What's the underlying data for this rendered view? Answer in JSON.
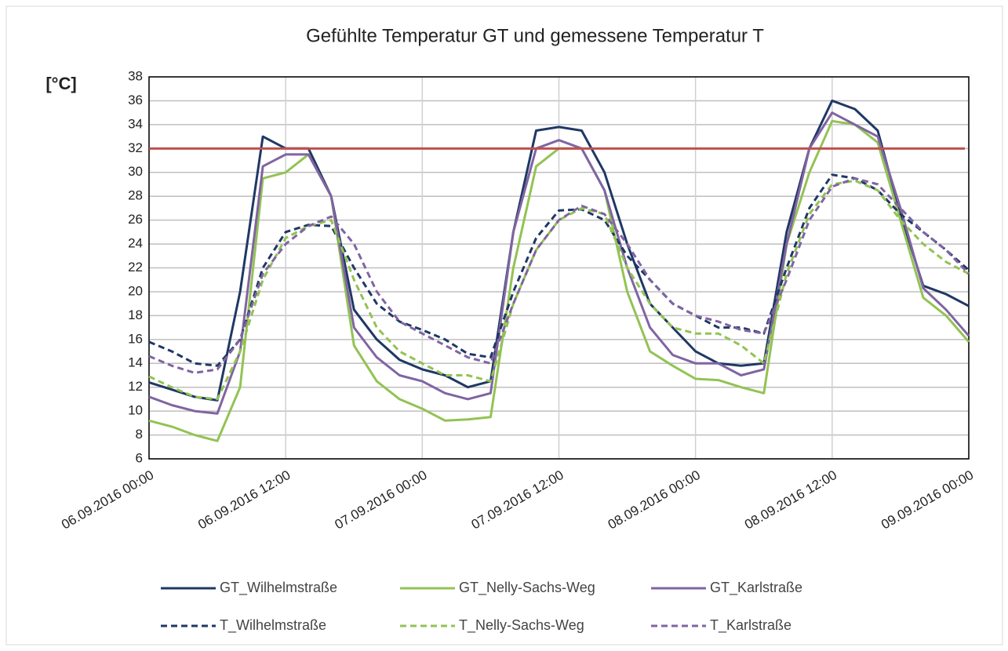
{
  "chart_data": {
    "type": "line",
    "title": "Gefühlte Temperatur GT  und gemessene Temperatur T",
    "y_label": "[°C]",
    "x": [
      "06.09.2016 00:00",
      "06.09.2016 02:00",
      "06.09.2016 04:00",
      "06.09.2016 06:00",
      "06.09.2016 08:00",
      "06.09.2016 10:00",
      "06.09.2016 12:00",
      "06.09.2016 14:00",
      "06.09.2016 16:00",
      "06.09.2016 18:00",
      "06.09.2016 20:00",
      "06.09.2016 22:00",
      "07.09.2016 00:00",
      "07.09.2016 02:00",
      "07.09.2016 04:00",
      "07.09.2016 06:00",
      "07.09.2016 08:00",
      "07.09.2016 10:00",
      "07.09.2016 12:00",
      "07.09.2016 14:00",
      "07.09.2016 16:00",
      "07.09.2016 18:00",
      "07.09.2016 20:00",
      "07.09.2016 22:00",
      "08.09.2016 00:00",
      "08.09.2016 02:00",
      "08.09.2016 04:00",
      "08.09.2016 06:00",
      "08.09.2016 08:00",
      "08.09.2016 10:00",
      "08.09.2016 12:00",
      "08.09.2016 14:00",
      "08.09.2016 16:00",
      "08.09.2016 18:00",
      "08.09.2016 20:00",
      "08.09.2016 22:00",
      "09.09.2016 00:00"
    ],
    "series": [
      {
        "name": "GT_Wilhelmstraße",
        "color": "#1f3864",
        "dash": false,
        "values": [
          12.4,
          11.8,
          11.2,
          10.9,
          20,
          33,
          32,
          32,
          28,
          18.5,
          16,
          14.3,
          13.5,
          13,
          12,
          12.5,
          25,
          33.5,
          33.8,
          33.5,
          30,
          24,
          19,
          17,
          15,
          14,
          13.8,
          14,
          25,
          32,
          36,
          35.3,
          33.5,
          26.5,
          20.5,
          19.8,
          18.8
        ]
      },
      {
        "name": "GT_Nelly-Sachs-Weg",
        "color": "#92c353",
        "dash": false,
        "values": [
          9.2,
          8.7,
          8,
          7.5,
          12,
          29.5,
          30,
          31.5,
          28,
          15.5,
          12.5,
          11,
          10.2,
          9.2,
          9.3,
          9.5,
          22,
          30.5,
          32,
          32,
          28.5,
          20,
          15,
          13.8,
          12.7,
          12.6,
          12,
          11.5,
          24,
          30,
          34.3,
          34,
          32.5,
          26,
          19.5,
          18,
          15.8
        ]
      },
      {
        "name": "GT_Karlstraße",
        "color": "#8064a2",
        "dash": false,
        "values": [
          11.2,
          10.5,
          10,
          9.8,
          15,
          30.5,
          31.5,
          31.5,
          28,
          17,
          14.5,
          13,
          12.5,
          11.5,
          11,
          11.5,
          25,
          32,
          32.7,
          32,
          28.5,
          22,
          17,
          14.7,
          14,
          14,
          13,
          13.5,
          24,
          32,
          35,
          34,
          33,
          27,
          20.3,
          18.5,
          16.3
        ]
      },
      {
        "name": "T_Wilhelmstraße",
        "color": "#1f3864",
        "dash": true,
        "values": [
          15.8,
          15,
          14,
          13.8,
          16,
          22,
          25,
          25.6,
          25.5,
          22,
          19,
          17.5,
          16.8,
          16,
          14.8,
          14.5,
          20,
          24.5,
          26.8,
          26.9,
          26,
          23,
          21,
          19,
          18,
          17,
          17,
          16.5,
          22,
          27,
          29.8,
          29.5,
          28.5,
          26.5,
          25,
          23.5,
          21.8
        ]
      },
      {
        "name": "T_Nelly-Sachs-Weg",
        "color": "#92c353",
        "dash": true,
        "values": [
          12.9,
          12,
          11.2,
          11,
          15,
          21,
          24.5,
          25.5,
          26,
          21,
          17,
          15,
          14,
          13,
          13,
          12.5,
          19,
          23.5,
          26,
          27,
          26.5,
          22,
          19,
          17,
          16.5,
          16.5,
          15.5,
          14,
          21.5,
          26.5,
          29,
          29.3,
          28.5,
          26,
          24,
          22.5,
          21.5
        ]
      },
      {
        "name": "T_Karlstraße",
        "color": "#8064a2",
        "dash": true,
        "values": [
          14.6,
          13.8,
          13.2,
          13.5,
          16,
          21.5,
          24,
          25.5,
          26.3,
          24,
          20,
          17.5,
          16.5,
          15.5,
          14.5,
          14,
          19,
          23.5,
          26,
          27.2,
          26.5,
          24,
          21,
          19,
          18,
          17.5,
          16.8,
          16.5,
          21,
          26,
          28.8,
          29.5,
          29,
          27,
          25,
          23.5,
          21.5
        ]
      }
    ],
    "reference_line": {
      "value": 32,
      "color": "#c0504d"
    },
    "xlim": [
      "06.09.2016 00:00",
      "09.09.2016 00:00"
    ],
    "xticks": [
      "06.09.2016 00:00",
      "06.09.2016 12:00",
      "07.09.2016 00:00",
      "07.09.2016 12:00",
      "08.09.2016 00:00",
      "08.09.2016 12:00",
      "09.09.2016 00:00"
    ],
    "ylim": [
      6,
      38
    ],
    "yticks": [
      6,
      8,
      10,
      12,
      14,
      16,
      18,
      20,
      22,
      24,
      26,
      28,
      30,
      32,
      34,
      36,
      38
    ],
    "grid": true,
    "legend": "bottom"
  }
}
